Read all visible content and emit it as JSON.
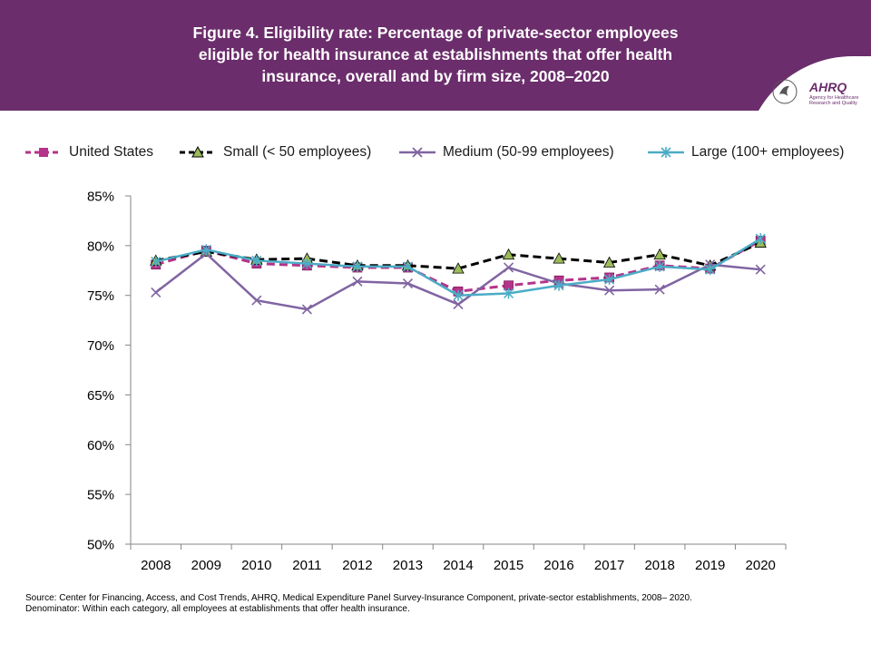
{
  "header": {
    "title_lines": [
      "Figure 4. Eligibility rate: Percentage of private-sector employees",
      "eligible for health insurance at establishments that offer health",
      "insurance, overall and by firm size, 2008–2020"
    ],
    "logo_text": "AHRQ",
    "logo_subtext_lines": [
      "Agency for Healthcare",
      "Research and Quality"
    ],
    "background_color": "#6b2d6b"
  },
  "chart_data": {
    "type": "line",
    "title": "Figure 4. Eligibility rate: Percentage of private-sector employees eligible for health insurance at establishments that offer health insurance, overall and by firm size, 2008–2020",
    "categories": [
      "2008",
      "2009",
      "2010",
      "2011",
      "2012",
      "2013",
      "2014",
      "2015",
      "2016",
      "2017",
      "2018",
      "2019",
      "2020"
    ],
    "ylim": [
      50,
      85
    ],
    "yticks": [
      "50%",
      "55%",
      "60%",
      "65%",
      "70%",
      "75%",
      "80%",
      "85%"
    ],
    "ytick_values": [
      50,
      55,
      60,
      65,
      70,
      75,
      80,
      85
    ],
    "xlabel": "",
    "ylabel": "",
    "legend_position": "top",
    "grid": false,
    "series": [
      {
        "name": "United States",
        "color": "#b5338a",
        "marker": "square",
        "dashed": true,
        "values": [
          78.1,
          79.5,
          78.2,
          78.0,
          77.8,
          77.8,
          75.4,
          76.0,
          76.5,
          76.8,
          78.0,
          77.7,
          80.5
        ]
      },
      {
        "name": "Small (< 50 employees)",
        "color": "#000000",
        "marker": "triangle",
        "dashed": true,
        "values": [
          78.5,
          79.4,
          78.6,
          78.7,
          78.0,
          78.0,
          77.7,
          79.1,
          78.7,
          78.3,
          79.1,
          78.0,
          80.3
        ]
      },
      {
        "name": "Medium (50-99 employees)",
        "color": "#8064a2",
        "marker": "x",
        "dashed": false,
        "values": [
          75.3,
          79.2,
          74.5,
          73.6,
          76.4,
          76.2,
          74.1,
          77.8,
          76.2,
          75.5,
          75.6,
          78.1,
          77.6
        ]
      },
      {
        "name": "Large (100+ employees)",
        "color": "#4bacc6",
        "marker": "asterisk",
        "dashed": false,
        "values": [
          78.4,
          79.6,
          78.5,
          78.2,
          77.9,
          77.9,
          75.0,
          75.2,
          76.0,
          76.6,
          77.9,
          77.6,
          80.7
        ]
      }
    ]
  },
  "source": {
    "line1": "Source: Center for Financing, Access, and Cost Trends, AHRQ, Medical Expenditure Panel Survey-Insurance Component, private-sector establishments, 2008– 2020.",
    "line2": "Denominator: Within each category, all employees at establishments that offer health insurance."
  }
}
